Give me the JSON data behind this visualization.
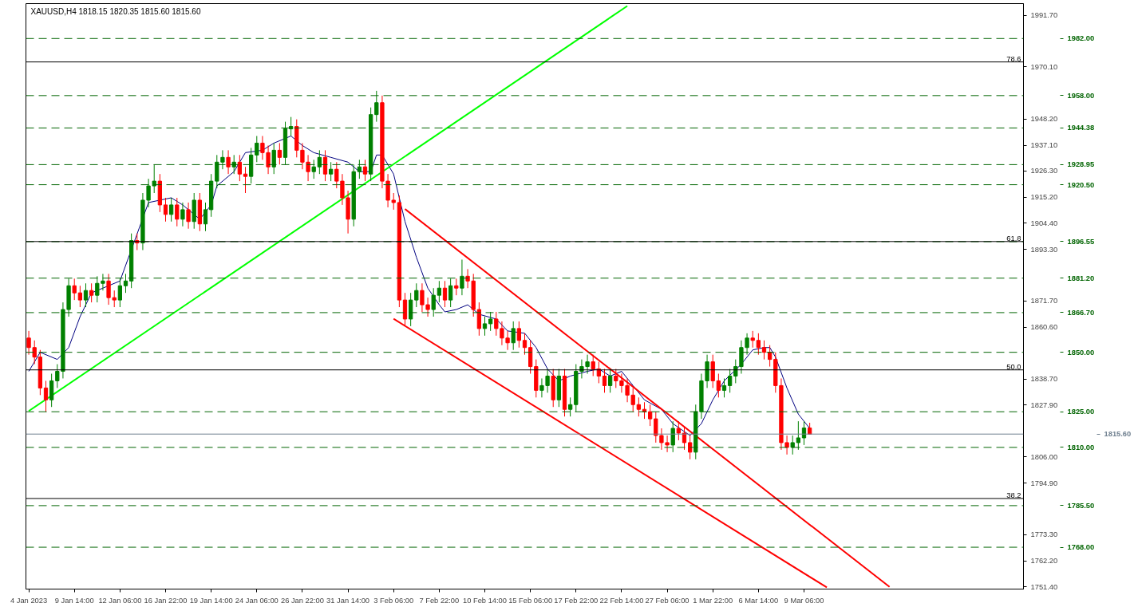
{
  "chart_data": {
    "type": "candlestick",
    "title": "XAUUSD,H4  1818.15 1820.35 1815.60 1815.60",
    "categories": [
      "4 Jan 2023",
      null,
      null,
      null,
      null,
      null,
      null,
      null,
      "9 Jan 14:00",
      null,
      null,
      null,
      null,
      null,
      null,
      null,
      "12 Jan 06:00",
      null,
      null,
      null,
      null,
      null,
      null,
      null,
      "16 Jan 22:00",
      null,
      null,
      null,
      null,
      null,
      null,
      null,
      "19 Jan 14:00",
      null,
      null,
      null,
      null,
      null,
      null,
      null,
      "24 Jan 06:00",
      null,
      null,
      null,
      null,
      null,
      null,
      null,
      "26 Jan 22:00",
      null,
      null,
      null,
      null,
      null,
      null,
      null,
      "31 Jan 14:00",
      null,
      null,
      null,
      null,
      null,
      null,
      null,
      "3 Feb 06:00",
      null,
      null,
      null,
      null,
      null,
      null,
      null,
      "7 Feb 22:00",
      null,
      null,
      null,
      null,
      null,
      null,
      null,
      "10 Feb 14:00",
      null,
      null,
      null,
      null,
      null,
      null,
      null,
      "15 Feb 06:00",
      null,
      null,
      null,
      null,
      null,
      null,
      null,
      "17 Feb 22:00",
      null,
      null,
      null,
      null,
      null,
      null,
      null,
      "22 Feb 14:00",
      null,
      null,
      null,
      null,
      null,
      null,
      null,
      "27 Feb 06:00",
      null,
      null,
      null,
      null,
      null,
      null,
      null,
      "1 Mar 22:00",
      null,
      null,
      null,
      null,
      null,
      null,
      null,
      "6 Mar 14:00",
      null,
      null,
      null,
      null,
      null,
      null,
      null,
      "9 Mar 06:00",
      null,
      null,
      null,
      null,
      null,
      null,
      null,
      null,
      null,
      null,
      null,
      null,
      null,
      null,
      null,
      null,
      null,
      null,
      null,
      null,
      null,
      null,
      null,
      null,
      null,
      null,
      null,
      null,
      null,
      null,
      null,
      null,
      null,
      null,
      null,
      null,
      null,
      null
    ],
    "ohlc": [
      [
        1856,
        1859,
        1849,
        1852
      ],
      [
        1852,
        1855,
        1845,
        1848
      ],
      [
        1848,
        1851,
        1832,
        1835
      ],
      [
        1835,
        1838,
        1825,
        1830
      ],
      [
        1830,
        1841,
        1827,
        1838
      ],
      [
        1838,
        1845,
        1835,
        1842
      ],
      [
        1842,
        1871,
        1839,
        1868
      ],
      [
        1868,
        1881,
        1865,
        1878
      ],
      [
        1878,
        1881,
        1872,
        1875
      ],
      [
        1875,
        1878,
        1869,
        1872
      ],
      [
        1872,
        1879,
        1869,
        1876
      ],
      [
        1876,
        1879,
        1871,
        1874
      ],
      [
        1874,
        1882,
        1871,
        1879
      ],
      [
        1879,
        1883,
        1876,
        1880
      ],
      [
        1880,
        1883,
        1870,
        1873
      ],
      [
        1873,
        1876,
        1869,
        1872
      ],
      [
        1872,
        1881,
        1869,
        1878
      ],
      [
        1878,
        1883,
        1875,
        1880
      ],
      [
        1880,
        1900,
        1877,
        1897
      ],
      [
        1897,
        1900,
        1893,
        1896
      ],
      [
        1896,
        1917,
        1893,
        1914
      ],
      [
        1914,
        1923,
        1911,
        1920
      ],
      [
        1920,
        1929,
        1917,
        1922
      ],
      [
        1922,
        1925,
        1909,
        1912
      ],
      [
        1912,
        1915,
        1905,
        1908
      ],
      [
        1908,
        1915,
        1905,
        1912
      ],
      [
        1912,
        1915,
        1903,
        1906
      ],
      [
        1906,
        1913,
        1903,
        1910
      ],
      [
        1910,
        1913,
        1902,
        1905
      ],
      [
        1905,
        1917,
        1902,
        1914
      ],
      [
        1914,
        1917,
        1901,
        1904
      ],
      [
        1904,
        1913,
        1901,
        1910
      ],
      [
        1910,
        1925,
        1907,
        1922
      ],
      [
        1922,
        1933,
        1919,
        1930
      ],
      [
        1930,
        1935,
        1927,
        1932
      ],
      [
        1932,
        1935,
        1925,
        1928
      ],
      [
        1928,
        1933,
        1925,
        1930
      ],
      [
        1930,
        1933,
        1922,
        1925
      ],
      [
        1925,
        1928,
        1917,
        1924
      ],
      [
        1924,
        1936,
        1921,
        1933
      ],
      [
        1933,
        1941,
        1930,
        1938
      ],
      [
        1938,
        1941,
        1931,
        1934
      ],
      [
        1934,
        1937,
        1925,
        1928
      ],
      [
        1928,
        1938,
        1925,
        1935
      ],
      [
        1935,
        1938,
        1929,
        1932
      ],
      [
        1932,
        1947,
        1929,
        1944
      ],
      [
        1944,
        1949,
        1941,
        1945
      ],
      [
        1945,
        1948,
        1932,
        1935
      ],
      [
        1935,
        1938,
        1927,
        1930
      ],
      [
        1930,
        1933,
        1922,
        1926
      ],
      [
        1926,
        1931,
        1923,
        1928
      ],
      [
        1928,
        1935,
        1925,
        1932
      ],
      [
        1932,
        1935,
        1922,
        1925
      ],
      [
        1925,
        1930,
        1922,
        1927
      ],
      [
        1927,
        1930,
        1919,
        1922
      ],
      [
        1922,
        1925,
        1912,
        1915
      ],
      [
        1915,
        1918,
        1900,
        1906
      ],
      [
        1906,
        1929,
        1903,
        1926
      ],
      [
        1926,
        1931,
        1923,
        1928
      ],
      [
        1928,
        1931,
        1922,
        1925
      ],
      [
        1925,
        1953,
        1922,
        1950
      ],
      [
        1950,
        1960,
        1947,
        1955
      ],
      [
        1955,
        1958,
        1919,
        1922
      ],
      [
        1922,
        1925,
        1911,
        1914
      ],
      [
        1914,
        1917,
        1910,
        1913
      ],
      [
        1913,
        1916,
        1869,
        1872
      ],
      [
        1872,
        1875,
        1861,
        1864
      ],
      [
        1864,
        1875,
        1861,
        1872
      ],
      [
        1872,
        1879,
        1869,
        1876
      ],
      [
        1876,
        1879,
        1867,
        1870
      ],
      [
        1870,
        1873,
        1865,
        1868
      ],
      [
        1868,
        1877,
        1865,
        1874
      ],
      [
        1874,
        1880,
        1871,
        1877
      ],
      [
        1877,
        1880,
        1869,
        1872
      ],
      [
        1872,
        1881,
        1869,
        1878
      ],
      [
        1878,
        1881,
        1874,
        1877
      ],
      [
        1877,
        1889,
        1874,
        1882
      ],
      [
        1882,
        1885,
        1877,
        1880
      ],
      [
        1880,
        1883,
        1865,
        1868
      ],
      [
        1868,
        1871,
        1857,
        1860
      ],
      [
        1860,
        1865,
        1857,
        1862
      ],
      [
        1862,
        1867,
        1859,
        1864
      ],
      [
        1864,
        1867,
        1857,
        1860
      ],
      [
        1860,
        1863,
        1853,
        1856
      ],
      [
        1856,
        1859,
        1851,
        1854
      ],
      [
        1854,
        1863,
        1851,
        1860
      ],
      [
        1860,
        1863,
        1852,
        1855
      ],
      [
        1855,
        1858,
        1849,
        1852
      ],
      [
        1852,
        1855,
        1841,
        1844
      ],
      [
        1844,
        1847,
        1831,
        1834
      ],
      [
        1834,
        1839,
        1831,
        1836
      ],
      [
        1836,
        1843,
        1833,
        1840
      ],
      [
        1840,
        1843,
        1827,
        1830
      ],
      [
        1830,
        1843,
        1827,
        1840
      ],
      [
        1840,
        1843,
        1823,
        1826
      ],
      [
        1826,
        1831,
        1823,
        1828
      ],
      [
        1828,
        1845,
        1825,
        1842
      ],
      [
        1842,
        1847,
        1839,
        1844
      ],
      [
        1844,
        1849,
        1841,
        1846
      ],
      [
        1846,
        1849,
        1840,
        1843
      ],
      [
        1843,
        1846,
        1837,
        1840
      ],
      [
        1840,
        1843,
        1833,
        1836
      ],
      [
        1836,
        1843,
        1833,
        1840
      ],
      [
        1840,
        1843,
        1835,
        1838
      ],
      [
        1838,
        1841,
        1833,
        1836
      ],
      [
        1836,
        1839,
        1829,
        1832
      ],
      [
        1832,
        1835,
        1825,
        1828
      ],
      [
        1828,
        1831,
        1823,
        1826
      ],
      [
        1826,
        1829,
        1822,
        1825
      ],
      [
        1825,
        1828,
        1819,
        1822
      ],
      [
        1822,
        1825,
        1812,
        1815
      ],
      [
        1815,
        1818,
        1809,
        1812
      ],
      [
        1812,
        1815,
        1808,
        1811
      ],
      [
        1811,
        1821,
        1808,
        1818
      ],
      [
        1818,
        1821,
        1813,
        1816
      ],
      [
        1816,
        1819,
        1809,
        1812
      ],
      [
        1812,
        1815,
        1805,
        1808
      ],
      [
        1808,
        1828,
        1805,
        1825
      ],
      [
        1825,
        1841,
        1822,
        1838
      ],
      [
        1838,
        1849,
        1835,
        1846
      ],
      [
        1846,
        1849,
        1835,
        1838
      ],
      [
        1838,
        1841,
        1831,
        1834
      ],
      [
        1834,
        1839,
        1831,
        1836
      ],
      [
        1836,
        1843,
        1833,
        1840
      ],
      [
        1840,
        1847,
        1837,
        1844
      ],
      [
        1844,
        1855,
        1841,
        1852
      ],
      [
        1852,
        1858,
        1849,
        1856
      ],
      [
        1856,
        1859,
        1852,
        1855
      ],
      [
        1855,
        1858,
        1849,
        1852
      ],
      [
        1852,
        1855,
        1847,
        1850
      ],
      [
        1850,
        1853,
        1844,
        1847
      ],
      [
        1847,
        1850,
        1833,
        1836
      ],
      [
        1836,
        1839,
        1809,
        1812
      ],
      [
        1812,
        1815,
        1807,
        1810
      ],
      [
        1810,
        1815,
        1807,
        1812
      ],
      [
        1812,
        1821,
        1809,
        1814
      ],
      [
        1814,
        1821,
        1811,
        1818.15
      ],
      [
        1818.15,
        1820.35,
        1815.6,
        1815.6
      ],
      null,
      null,
      null,
      null,
      null,
      null,
      null,
      null,
      null,
      null,
      null,
      null,
      null,
      null,
      null,
      null,
      null,
      null,
      null,
      null,
      null,
      null,
      null,
      null,
      null,
      null,
      null,
      null,
      null,
      null,
      null,
      null,
      null,
      null,
      null,
      null,
      null
    ],
    "series": [
      {
        "type": "line",
        "color": "#000080",
        "values": [
          1842,
          null,
          1850,
          null,
          null,
          1847,
          null,
          1852,
          null,
          1865,
          null,
          1875,
          null,
          1877,
          null,
          null,
          1880,
          null,
          null,
          null,
          null,
          1913,
          null,
          null,
          null,
          1915,
          null,
          1912,
          null,
          null,
          1906,
          null,
          1912,
          1920,
          null,
          null,
          1926,
          null,
          1934,
          null,
          null,
          1935,
          null,
          1938,
          null,
          null,
          1941,
          null,
          1937,
          null,
          1934,
          null,
          null,
          1932,
          null,
          null,
          1930,
          null,
          1926,
          null,
          1926,
          1933,
          1933,
          null,
          1925,
          null,
          1905,
          null,
          1890,
          null,
          1877,
          null,
          1870,
          1867,
          null,
          1868,
          null,
          1870,
          null,
          1866,
          null,
          null,
          1864,
          null,
          1859,
          null,
          null,
          1858,
          null,
          1852,
          null,
          1843,
          null,
          1838,
          null,
          1840,
          null,
          null,
          1842,
          null,
          1843,
          null,
          1840,
          null,
          1842,
          null,
          1836,
          null,
          1830,
          null,
          null,
          1826,
          null,
          1820,
          null,
          null,
          1815,
          null,
          1820,
          null,
          1830,
          null,
          1838,
          null,
          null,
          1845,
          null,
          1851,
          null,
          1852,
          1852,
          1848,
          null,
          1835,
          null,
          1824,
          null,
          1818,
          null,
          null,
          null,
          null,
          null,
          null,
          null,
          null,
          null,
          null,
          null,
          null,
          null,
          null,
          null,
          null,
          null,
          null,
          null,
          null,
          null,
          null,
          null,
          null,
          null,
          null,
          null,
          null,
          null,
          null,
          null,
          null,
          null,
          null,
          null,
          null,
          null
        ]
      },
      {
        "type": "line",
        "color": "#00ff00",
        "values": [
          1825.3,
          null,
          null,
          null,
          null,
          null,
          null,
          null,
          null,
          null,
          null,
          null,
          null,
          null,
          null,
          null,
          null,
          null,
          null,
          null,
          null,
          null,
          null,
          null,
          null,
          null,
          null,
          null,
          null,
          null,
          null,
          null,
          null,
          null,
          null,
          null,
          null,
          null,
          null,
          null,
          null,
          null,
          null,
          null,
          null,
          null,
          null,
          null,
          null,
          null,
          null,
          null,
          null,
          null,
          null,
          null,
          null,
          null,
          null,
          null,
          null,
          null,
          null,
          null,
          null,
          null,
          null,
          null,
          null,
          null,
          null,
          null,
          null,
          null,
          null,
          null,
          null,
          null,
          null,
          null,
          null,
          null,
          null,
          null,
          null,
          null,
          null,
          null,
          null,
          null,
          null,
          null,
          null,
          null,
          null,
          null,
          null,
          null,
          null,
          null,
          null,
          null,
          null,
          null,
          null,
          1995.7,
          null,
          null,
          null,
          null,
          null,
          null,
          null,
          null,
          null,
          null,
          null,
          null,
          null,
          null,
          null,
          null,
          null,
          null,
          null,
          null,
          null,
          null,
          null,
          null,
          null,
          null,
          null,
          null,
          null,
          null,
          null,
          null,
          null,
          null,
          null,
          null,
          null,
          null,
          null,
          null,
          null,
          null,
          null,
          null,
          null,
          null,
          null,
          null,
          null,
          null,
          null,
          null,
          null,
          null,
          null,
          null,
          null,
          null,
          null,
          null,
          null,
          null,
          null,
          null,
          null,
          null,
          null,
          null,
          null
        ]
      },
      {
        "type": "line",
        "color": "#ff0000",
        "values": [
          null,
          null,
          null,
          null,
          null,
          null,
          null,
          null,
          null,
          null,
          null,
          null,
          null,
          null,
          null,
          null,
          null,
          null,
          null,
          null,
          null,
          null,
          null,
          null,
          null,
          null,
          null,
          null,
          null,
          null,
          null,
          null,
          null,
          null,
          null,
          null,
          null,
          null,
          null,
          null,
          null,
          null,
          null,
          null,
          null,
          null,
          null,
          null,
          null,
          null,
          null,
          null,
          null,
          null,
          null,
          null,
          null,
          null,
          null,
          null,
          null,
          null,
          null,
          null,
          null,
          null,
          1910.3,
          null,
          null,
          null,
          null,
          null,
          null,
          null,
          null,
          null,
          null,
          null,
          null,
          null,
          null,
          null,
          null,
          null,
          null,
          null,
          null,
          null,
          null,
          null,
          null,
          null,
          null,
          null,
          null,
          null,
          null,
          null,
          null,
          null,
          null,
          null,
          null,
          null,
          null,
          null,
          null,
          null,
          null,
          null,
          null,
          null,
          null,
          null,
          null,
          null,
          null,
          null,
          null,
          null,
          null,
          null,
          null,
          null,
          null,
          null,
          null,
          null,
          null,
          null,
          null,
          null,
          null,
          null,
          null,
          null,
          null,
          null,
          null,
          null,
          null,
          null,
          null,
          null,
          null,
          null,
          null,
          null,
          null,
          null,
          null,
          1751.3,
          null,
          null,
          null,
          null,
          null,
          null,
          null,
          null,
          null,
          null,
          null,
          null,
          null,
          null,
          null,
          null,
          null,
          null,
          null,
          null,
          null,
          null,
          null
        ]
      },
      {
        "type": "line",
        "color": "#ff0000",
        "values": [
          null,
          null,
          null,
          null,
          null,
          null,
          null,
          null,
          null,
          null,
          null,
          null,
          null,
          null,
          null,
          null,
          null,
          null,
          null,
          null,
          null,
          null,
          null,
          null,
          null,
          null,
          null,
          null,
          null,
          null,
          null,
          null,
          null,
          null,
          null,
          null,
          null,
          null,
          null,
          null,
          null,
          null,
          null,
          null,
          null,
          null,
          null,
          null,
          null,
          null,
          null,
          null,
          null,
          null,
          null,
          null,
          null,
          null,
          null,
          null,
          null,
          null,
          null,
          null,
          1864.1,
          null,
          null,
          null,
          null,
          null,
          null,
          null,
          null,
          null,
          null,
          null,
          null,
          null,
          null,
          null,
          null,
          null,
          null,
          null,
          null,
          null,
          null,
          null,
          null,
          null,
          null,
          null,
          null,
          null,
          null,
          null,
          null,
          null,
          null,
          null,
          null,
          null,
          null,
          null,
          null,
          null,
          null,
          null,
          null,
          null,
          null,
          null,
          null,
          null,
          null,
          null,
          null,
          null,
          null,
          null,
          null,
          null,
          null,
          null,
          null,
          null,
          null,
          null,
          null,
          null,
          null,
          null,
          null,
          null,
          null,
          null,
          null,
          null,
          null,
          null,
          1751.1,
          null,
          null,
          null,
          null,
          null,
          null,
          null,
          null,
          null,
          null,
          null,
          null,
          null,
          null,
          null,
          null,
          null,
          null,
          null,
          null,
          null,
          null,
          null,
          null,
          null,
          null,
          null,
          null,
          null,
          null,
          null,
          null,
          null,
          null
        ]
      }
    ],
    "ref_lines": [
      {
        "axis": "y",
        "value": 1982.0,
        "label": "1982.00",
        "color": "#006400",
        "line_style": "dashed"
      },
      {
        "axis": "y",
        "value": 1958.0,
        "label": "1958.00",
        "color": "#006400",
        "line_style": "dashed"
      },
      {
        "axis": "y",
        "value": 1944.38,
        "label": "1944.38",
        "color": "#006400",
        "line_style": "dashed"
      },
      {
        "axis": "y",
        "value": 1928.95,
        "label": "1928.95",
        "color": "#006400",
        "line_style": "dashed"
      },
      {
        "axis": "y",
        "value": 1920.5,
        "label": "1920.50",
        "color": "#006400",
        "line_style": "dashed"
      },
      {
        "axis": "y",
        "value": 1896.55,
        "label": "1896.55",
        "color": "#006400",
        "line_style": "dashed"
      },
      {
        "axis": "y",
        "value": 1881.2,
        "label": "1881.20",
        "color": "#006400",
        "line_style": "dashed"
      },
      {
        "axis": "y",
        "value": 1866.7,
        "label": "1866.70",
        "color": "#006400",
        "line_style": "dashed"
      },
      {
        "axis": "y",
        "value": 1850.0,
        "label": "1850.00",
        "color": "#006400",
        "line_style": "dashed"
      },
      {
        "axis": "y",
        "value": 1825.0,
        "label": "1825.00",
        "color": "#006400",
        "line_style": "dashed"
      },
      {
        "axis": "y",
        "value": 1810.0,
        "label": "1810.00",
        "color": "#006400",
        "line_style": "dashed"
      },
      {
        "axis": "y",
        "value": 1785.5,
        "label": "1785.50",
        "color": "#006400",
        "line_style": "dashed"
      },
      {
        "axis": "y",
        "value": 1768.0,
        "label": "1768.00",
        "color": "#006400",
        "line_style": "dashed"
      },
      {
        "axis": "y",
        "value": 1815.6,
        "label": "1815.60",
        "color": "#708090",
        "line_style": "solid"
      },
      {
        "axis": "y",
        "value": 1972.15,
        "color": "#000000",
        "line_style": "solid"
      },
      {
        "axis": "y",
        "value": 1896.6,
        "color": "#000000",
        "line_style": "solid"
      },
      {
        "axis": "y",
        "value": 1842.6,
        "color": "#000000",
        "line_style": "solid"
      },
      {
        "axis": "y",
        "value": 1788.5,
        "color": "#000000",
        "line_style": "solid"
      }
    ],
    "annotations": [
      {
        "text": "78.6",
        "y": 1972.15
      },
      {
        "text": "61.8",
        "y": 1896.6
      },
      {
        "text": "50.0",
        "y": 1842.6
      },
      {
        "text": "38.2",
        "y": 1788.5
      }
    ],
    "ylim": [
      1750.4,
      1996.7
    ],
    "yticks": [
      {
        "value": 1991.7,
        "label": "1991.70"
      },
      {
        "value": 1970.1,
        "label": "1970.10"
      },
      {
        "value": 1948.2,
        "label": "1948.20"
      },
      {
        "value": 1937.1,
        "label": "1937.10"
      },
      {
        "value": 1926.3,
        "label": "1926.30"
      },
      {
        "value": 1915.2,
        "label": "1915.20"
      },
      {
        "value": 1904.4,
        "label": "1904.40"
      },
      {
        "value": 1893.3,
        "label": "1893.30"
      },
      {
        "value": 1871.7,
        "label": "1871.70"
      },
      {
        "value": 1860.6,
        "label": "1860.60"
      },
      {
        "value": 1838.7,
        "label": "1838.70"
      },
      {
        "value": 1827.9,
        "label": "1827.90"
      },
      {
        "value": 1806.0,
        "label": "1806.00"
      },
      {
        "value": 1794.9,
        "label": "1794.90"
      },
      {
        "value": 1773.3,
        "label": "1773.30"
      },
      {
        "value": 1762.2,
        "label": "1762.20"
      },
      {
        "value": 1751.4,
        "label": "1751.40"
      }
    ]
  }
}
